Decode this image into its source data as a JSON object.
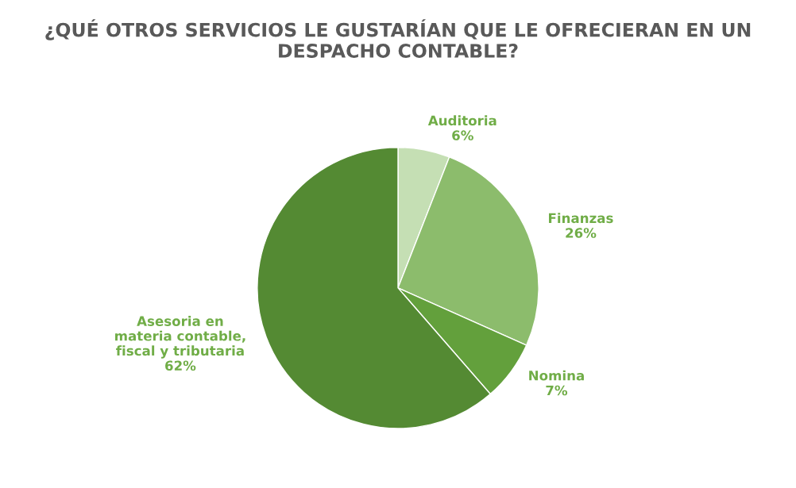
{
  "chart_data": {
    "type": "pie",
    "title": "¿QUÉ OTROS SERVICIOS LE GUSTARÍAN QUE LE OFRECIERAN EN UN DESPACHO CONTABLE?",
    "categories": [
      "Auditoria",
      "Finanzas",
      "Nomina",
      "Asesoria en\nmateria contable,\nfiscal y tributaria"
    ],
    "values": [
      6,
      26,
      7,
      62
    ],
    "value_labels": [
      "6%",
      "26%",
      "7%",
      "62%"
    ],
    "colors": [
      "#c5dfb4",
      "#8cbc6c",
      "#63a03c",
      "#548a33"
    ]
  }
}
